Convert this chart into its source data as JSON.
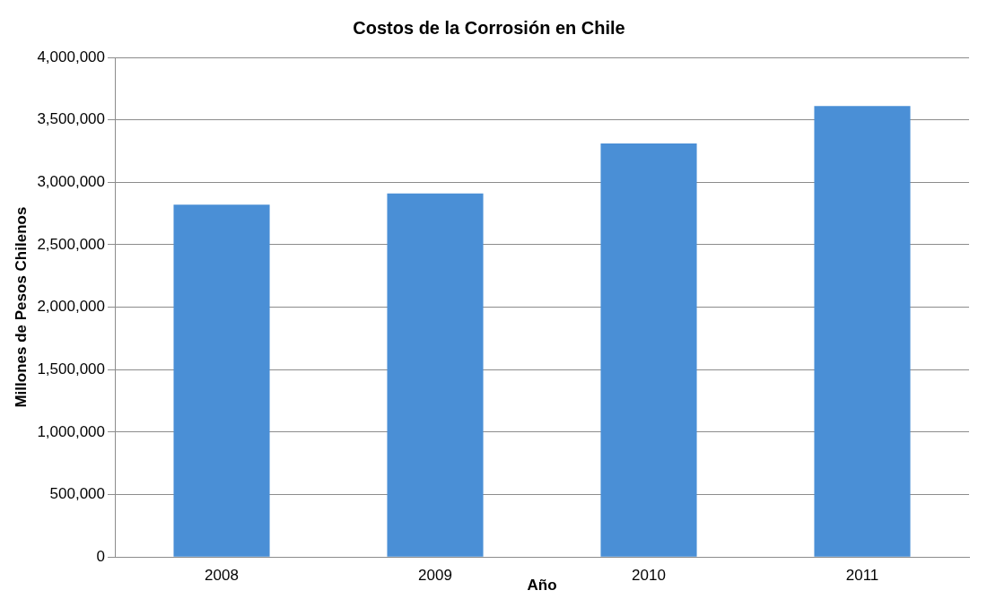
{
  "chart_data": {
    "type": "bar",
    "title": "Costos de la Corrosión en Chile",
    "xlabel": "Año",
    "ylabel": "Millones de Pesos Chilenos",
    "categories": [
      "2008",
      "2009",
      "2010",
      "2011"
    ],
    "values": [
      2820000,
      2910000,
      3310000,
      3610000
    ],
    "color": "#4a8fd6",
    "ylim": [
      0,
      4000000
    ],
    "yticks": [
      {
        "value": 0,
        "label": "0"
      },
      {
        "value": 500000,
        "label": "500,000"
      },
      {
        "value": 1000000,
        "label": "1,000,000"
      },
      {
        "value": 1500000,
        "label": "1,500,000"
      },
      {
        "value": 2000000,
        "label": "2,000,000"
      },
      {
        "value": 2500000,
        "label": "2,500,000"
      },
      {
        "value": 3000000,
        "label": "3,000,000"
      },
      {
        "value": 3500000,
        "label": "3,500,000"
      },
      {
        "value": 4000000,
        "label": "4,000,000"
      }
    ],
    "grid": "y",
    "legend": false
  }
}
